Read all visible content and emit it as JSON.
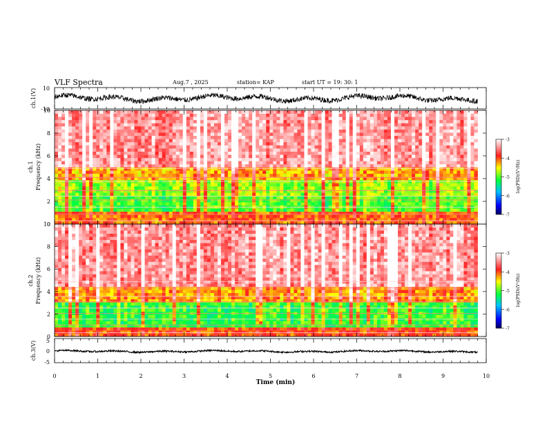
{
  "header": {
    "title": "VLF Spectra",
    "date": "Aug.7 , 2025",
    "station": "station= KAP",
    "start": "start UT = 19: 30: 1"
  },
  "chart_data": [
    {
      "type": "line",
      "panel": "ch1-waveform",
      "ylabel": "ch.1(V)",
      "ylim": [
        -10,
        10
      ],
      "y_tick_labels": [
        "10",
        "-10"
      ],
      "xlim": [
        0,
        10
      ],
      "data_end_min": 9.8,
      "baseline": 0,
      "amplitude": 4.5
    },
    {
      "type": "heatmap",
      "panel": "ch1-spectrogram",
      "ylabel_line1": "ch.1",
      "ylabel_line2": "Frequency (kHz)",
      "ylim": [
        0,
        10
      ],
      "y_tick_labels": [
        "0",
        "2",
        "4",
        "6",
        "8",
        "10"
      ],
      "xlim": [
        0,
        10
      ],
      "data_end_min": 9.8,
      "bands_khz": [
        {
          "from": 0.0,
          "to": 1.2,
          "level": -4.1
        },
        {
          "from": 1.2,
          "to": 2.5,
          "level": -5.0
        },
        {
          "from": 2.5,
          "to": 3.8,
          "level": -4.8
        },
        {
          "from": 3.8,
          "to": 5.0,
          "level": -4.3
        },
        {
          "from": 5.0,
          "to": 10.0,
          "level": -3.4
        }
      ],
      "colorbar": {
        "label": "log(PSD)(V²/Hz)",
        "range": [
          -7,
          -3
        ],
        "tick_labels": [
          "-3",
          "-4",
          "-5",
          "-6",
          "-7"
        ]
      }
    },
    {
      "type": "heatmap",
      "panel": "ch2-spectrogram",
      "ylabel_line1": "ch.2",
      "ylabel_line2": "Frequency (kHz)",
      "ylim": [
        0,
        10
      ],
      "y_tick_labels": [
        "0",
        "2",
        "4",
        "6",
        "8",
        "10"
      ],
      "xlim": [
        0,
        10
      ],
      "data_end_min": 9.8,
      "bands_khz": [
        {
          "from": 0.0,
          "to": 0.8,
          "level": -4.0
        },
        {
          "from": 0.8,
          "to": 3.0,
          "level": -5.1
        },
        {
          "from": 3.0,
          "to": 4.5,
          "level": -4.2
        },
        {
          "from": 4.5,
          "to": 10.0,
          "level": -3.4
        }
      ],
      "colorbar": {
        "label": "log(PSD)(V²/Hz)",
        "range": [
          -7,
          -3
        ],
        "tick_labels": [
          "-3",
          "-4",
          "-5",
          "-6",
          "-7"
        ]
      }
    },
    {
      "type": "line",
      "panel": "ch3-waveform",
      "ylabel": "ch.3(V)",
      "ylim": [
        -5,
        5
      ],
      "y_tick_labels": [
        "5",
        "0",
        "-5"
      ],
      "xlim": [
        0,
        10
      ],
      "data_end_min": 9.8,
      "baseline": -0.3,
      "amplitude": 0.6
    }
  ],
  "x_axis": {
    "label": "Time (min)",
    "tick_labels": [
      "0",
      "1",
      "2",
      "3",
      "4",
      "5",
      "6",
      "7",
      "8",
      "9",
      "10"
    ]
  }
}
